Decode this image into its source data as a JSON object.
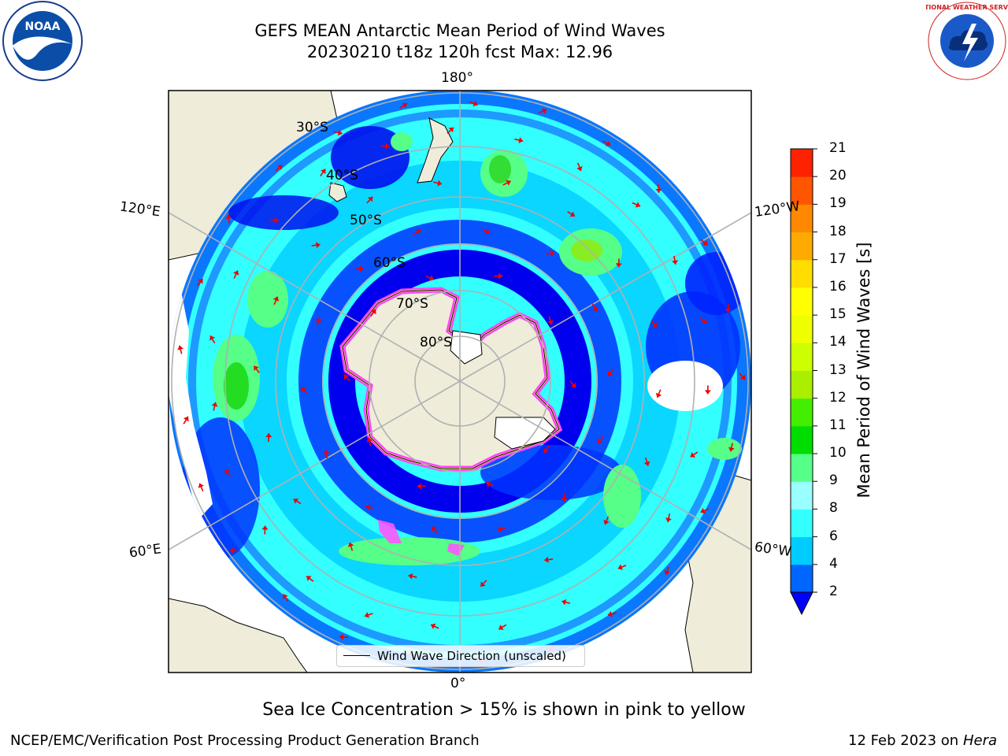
{
  "title": {
    "line1": "GEFS MEAN Antarctic Mean Period of Wind Waves",
    "line2": "20230210 t18z 120h fcst   Max: 12.96"
  },
  "logos": {
    "left": "noaa-logo",
    "right": "national-weather-service-logo",
    "left_text": "NOAA",
    "right_text": "NATIONAL WEATHER SERVICE"
  },
  "map": {
    "projection": "south-polar-stereographic",
    "lat_labels": [
      "30°S",
      "40°S",
      "50°S",
      "60°S",
      "70°S",
      "80°S"
    ],
    "lon_labels": {
      "top": "180°",
      "bottom": "0°",
      "left_upper": "120°E",
      "left_lower": "60°E",
      "right_upper": "120°W",
      "right_lower": "60°W"
    },
    "legend": "Wind Wave Direction (unscaled)",
    "arrow_color": "#ee0000",
    "land_color": "#efecda",
    "ice_colors": [
      "#ff44ff",
      "#ffff66"
    ]
  },
  "colorbar": {
    "label": "Mean Period of Wind Waves [s]",
    "ticks": [
      "2",
      "4",
      "6",
      "8",
      "9",
      "10",
      "11",
      "12",
      "13",
      "14",
      "15",
      "16",
      "17",
      "18",
      "19",
      "20",
      "21"
    ],
    "colors": [
      "#0066ff",
      "#00ccff",
      "#33ffff",
      "#99ffff",
      "#55ff88",
      "#00dd00",
      "#44ee00",
      "#aaee00",
      "#ccff00",
      "#eeff00",
      "#ffff00",
      "#ffdd00",
      "#ffaa00",
      "#ff8800",
      "#ff5500",
      "#ff2200"
    ],
    "extend_below_color": "#0000ff"
  },
  "caption": "Sea Ice Concentration > 15% is shown in pink to yellow",
  "footer": {
    "left": "NCEP/EMC/Verification Post Processing Product Generation Branch",
    "right_date": "12 Feb 2023 on",
    "right_host": "Hera"
  }
}
